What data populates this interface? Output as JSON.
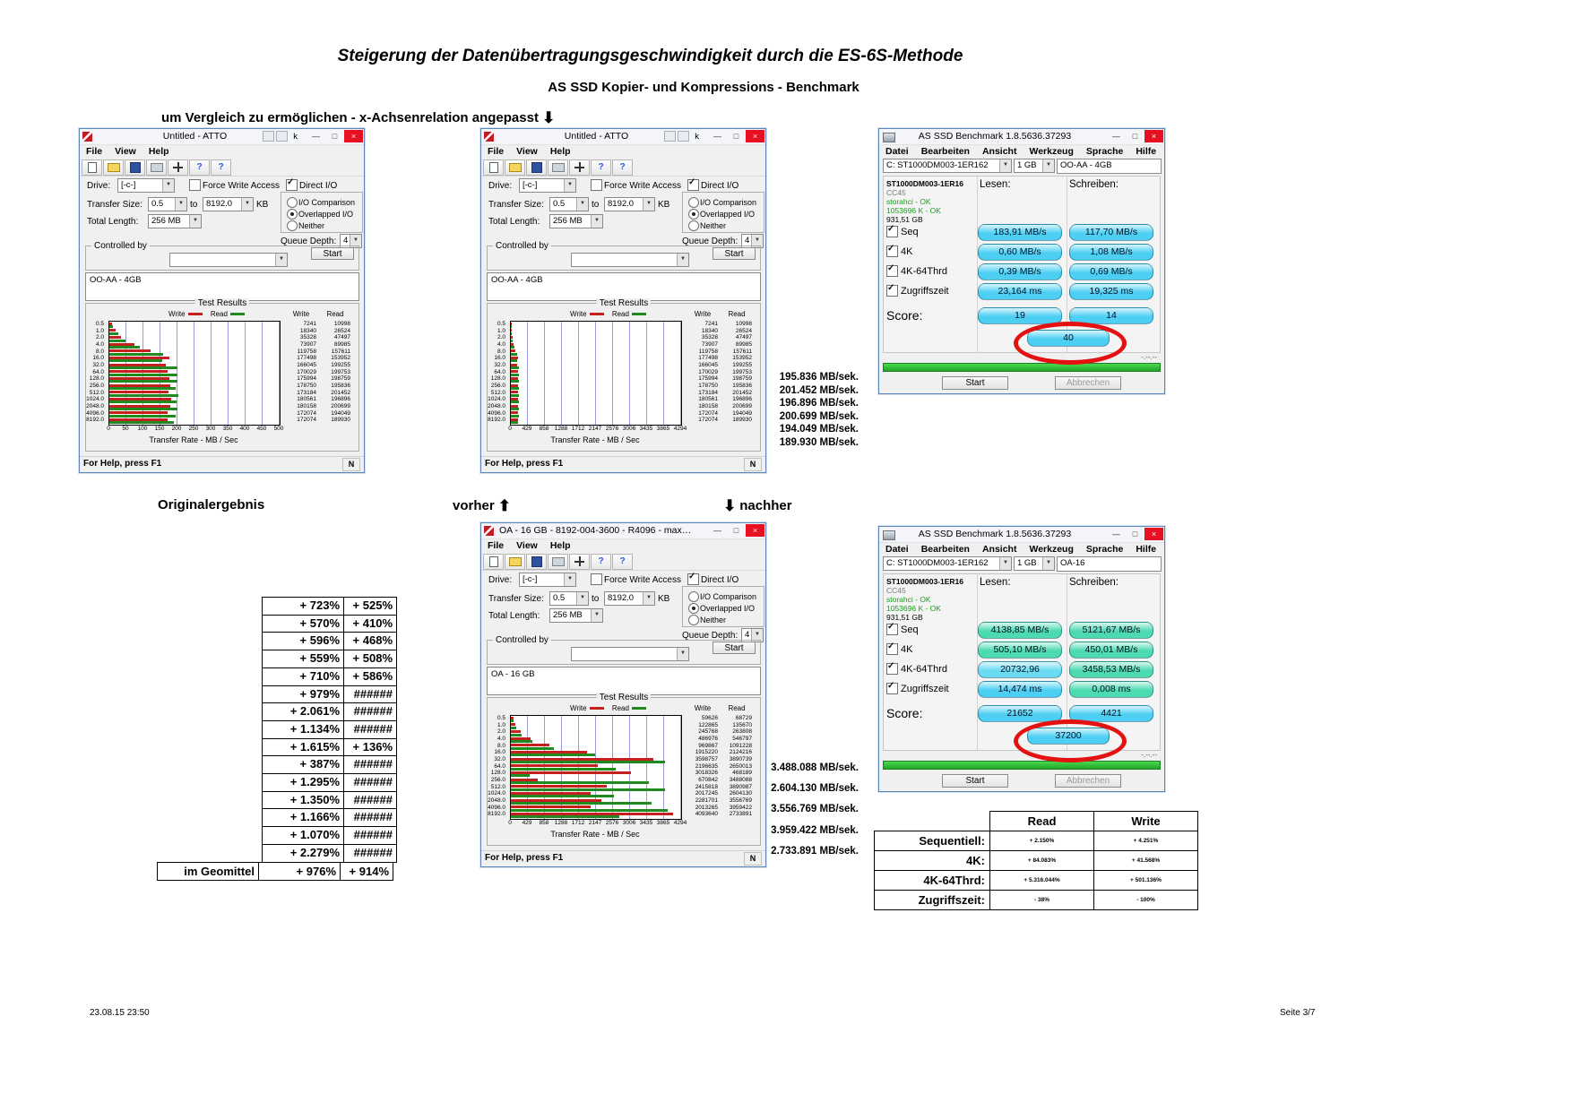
{
  "icons": {
    "dropdown": "▼",
    "check": "✓",
    "close": "×",
    "minimize": "—",
    "maximize": "□",
    "up_arrow": "⬆",
    "down_arrow": "⬇",
    "help": "?"
  },
  "page": {
    "title": "Steigerung der Datenübertragungsgeschwindigkeit durch die ES-6S-Methode",
    "subtitle": "AS SSD Kopier- und Kompressions - Benchmark",
    "note": "um Vergleich zu ermöglichen - x-Achsenrelation angepasst",
    "label_original": "Originalergebnis",
    "label_vorher": "vorher",
    "label_nachher": "nachher",
    "footer_left": "23.08.15 23:50",
    "footer_right": "Seite 3/7"
  },
  "atto_common": {
    "menu": [
      "File",
      "View",
      "Help"
    ],
    "drive_label": "Drive:",
    "drive_value": "[-c-]",
    "force_write": "Force Write Access",
    "direct_io": "Direct I/O",
    "transfer_size_label": "Transfer Size:",
    "transfer_from": "0.5",
    "to": "to",
    "transfer_to": "8192.0",
    "kb": "KB",
    "io_comparison": "I/O Comparison",
    "overlapped_io": "Overlapped I/O",
    "neither": "Neither",
    "total_length_label": "Total Length:",
    "total_length": "256 MB",
    "queue_depth_label": "Queue Depth:",
    "queue_depth": "4",
    "controlled_by": "Controlled by",
    "start": "Start",
    "test_results": "Test Results",
    "write": "Write",
    "read": "Read",
    "xaxis_label": "Transfer Rate - MB / Sec",
    "status": "For Help, press F1",
    "status_right": "N"
  },
  "atto_windows": [
    {
      "title": "Untitled - ATTO",
      "title_extra": "k",
      "desc": "OO-AA - 4GB",
      "xmax": 500,
      "xticks": [
        "0",
        "50",
        "100",
        "150",
        "200",
        "250",
        "300",
        "350",
        "400",
        "450",
        "500"
      ],
      "rows": [
        {
          "size": "0.5",
          "write": 7241,
          "read": 10998
        },
        {
          "size": "1.0",
          "write": 18340,
          "read": 26524
        },
        {
          "size": "2.0",
          "write": 35328,
          "read": 47497
        },
        {
          "size": "4.0",
          "write": 73907,
          "read": 89985
        },
        {
          "size": "8.0",
          "write": 119758,
          "read": 157611
        },
        {
          "size": "16.0",
          "write": 177498,
          "read": 153952
        },
        {
          "size": "32.0",
          "write": 166045,
          "read": 199255
        },
        {
          "size": "64.0",
          "write": 170029,
          "read": 199753
        },
        {
          "size": "128.0",
          "write": 175994,
          "read": 198759
        },
        {
          "size": "256.0",
          "write": 178750,
          "read": 195836
        },
        {
          "size": "512.0",
          "write": 173184,
          "read": 201452
        },
        {
          "size": "1024.0",
          "write": 180561,
          "read": 196896
        },
        {
          "size": "2048.0",
          "write": 180158,
          "read": 200699
        },
        {
          "size": "4096.0",
          "write": 172074,
          "read": 194049
        },
        {
          "size": "8192.0",
          "write": 172074,
          "read": 189930
        }
      ]
    },
    {
      "title": "Untitled - ATTO",
      "title_extra": "k",
      "desc": "OO-AA - 4GB",
      "xmax": 4294,
      "xticks": [
        "0",
        "429",
        "858",
        "1288",
        "1712",
        "2147",
        "2576",
        "3006",
        "3435",
        "3865",
        "4294"
      ],
      "rows": [
        {
          "size": "0.5",
          "write": 7241,
          "read": 10998
        },
        {
          "size": "1.0",
          "write": 18340,
          "read": 26524
        },
        {
          "size": "2.0",
          "write": 35328,
          "read": 47497
        },
        {
          "size": "4.0",
          "write": 73907,
          "read": 89985
        },
        {
          "size": "8.0",
          "write": 119758,
          "read": 157611
        },
        {
          "size": "16.0",
          "write": 177498,
          "read": 153952
        },
        {
          "size": "32.0",
          "write": 166045,
          "read": 199255
        },
        {
          "size": "64.0",
          "write": 170029,
          "read": 199753
        },
        {
          "size": "128.0",
          "write": 175994,
          "read": 198759
        },
        {
          "size": "256.0",
          "write": 178750,
          "read": 195836
        },
        {
          "size": "512.0",
          "write": 173184,
          "read": 201452
        },
        {
          "size": "1024.0",
          "write": 180561,
          "read": 196896
        },
        {
          "size": "2048.0",
          "write": 180158,
          "read": 200699
        },
        {
          "size": "4096.0",
          "write": 172074,
          "read": 194049
        },
        {
          "size": "8192.0",
          "write": 172074,
          "read": 189930
        }
      ]
    },
    {
      "title": "OA - 16 GB - 8192-004-3600 - R4096 - max 4292.b...",
      "title_extra": "",
      "desc": "OA - 16 GB",
      "xmax": 4294,
      "xticks": [
        "0",
        "429",
        "858",
        "1288",
        "1712",
        "2147",
        "2576",
        "3006",
        "3435",
        "3865",
        "4294"
      ],
      "rows": [
        {
          "size": "0.5",
          "write": 59626,
          "read": 68729
        },
        {
          "size": "1.0",
          "write": 122865,
          "read": 135670
        },
        {
          "size": "2.0",
          "write": 245768,
          "read": 263808
        },
        {
          "size": "4.0",
          "write": 486976,
          "read": 546797
        },
        {
          "size": "8.0",
          "write": 969867,
          "read": 1091228
        },
        {
          "size": "16.0",
          "write": 1915220,
          "read": 2124216
        },
        {
          "size": "32.0",
          "write": 3598757,
          "read": 3890739
        },
        {
          "size": "64.0",
          "write": 2196635,
          "read": 2650013
        },
        {
          "size": "128.0",
          "write": 3018326,
          "read": 468189
        },
        {
          "size": "256.0",
          "write": 670842,
          "read": 3488088
        },
        {
          "size": "512.0",
          "write": 2415818,
          "read": 3890987
        },
        {
          "size": "1024.0",
          "write": 2017245,
          "read": 2604130
        },
        {
          "size": "2048.0",
          "write": 2281701,
          "read": 3556769
        },
        {
          "size": "4096.0",
          "write": 2013265,
          "read": 3959422
        },
        {
          "size": "8192.0",
          "write": 4093640,
          "read": 2733891
        }
      ]
    }
  ],
  "asssd_common": {
    "menu": [
      "Datei",
      "Bearbeiten",
      "Ansicht",
      "Werkzeug",
      "Sprache",
      "Hilfe"
    ],
    "lesen": "Lesen:",
    "schreiben": "Schreiben:",
    "row_labels": [
      "Seq",
      "4K",
      "4K-64Thrd",
      "Zugriffszeit"
    ],
    "score_label": "Score:",
    "start": "Start",
    "abbrechen": "Abbrechen",
    "timer": "-.--.--"
  },
  "asssd_windows": [
    {
      "title": "AS SSD Benchmark 1.8.5636.37293",
      "drive_combo": "C: ST1000DM003-1ER162",
      "size_combo": "1 GB",
      "target_name": "OO-AA - 4GB",
      "info": {
        "model": "ST1000DM003-1ER16",
        "firmware": "CC45",
        "driver": "storahci - OK",
        "alignment": "1053696 K - OK",
        "capacity": "931,51 GB"
      },
      "rows": [
        {
          "read": "183,91 MB/s",
          "write": "117,70 MB/s",
          "read_color": "#38c9f2",
          "write_color": "#38c9f2"
        },
        {
          "read": "0,60 MB/s",
          "write": "1,08 MB/s",
          "read_color": "#38c9f2",
          "write_color": "#38c9f2"
        },
        {
          "read": "0,39 MB/s",
          "write": "0,69 MB/s",
          "read_color": "#38c9f2",
          "write_color": "#38c9f2"
        },
        {
          "read": "23,164 ms",
          "write": "19,325 ms",
          "read_color": "#38c9f2",
          "write_color": "#38c9f2"
        }
      ],
      "score_read": "19",
      "score_write": "14",
      "score_total": "40"
    },
    {
      "title": "AS SSD Benchmark 1.8.5636.37293",
      "drive_combo": "C: ST1000DM003-1ER162",
      "size_combo": "1 GB",
      "target_name": "OA-16",
      "info": {
        "model": "ST1000DM003-1ER16",
        "firmware": "CC45",
        "driver": "storahci - OK",
        "alignment": "1053696 K - OK",
        "capacity": "931,51 GB"
      },
      "rows": [
        {
          "read": "4138,85 MB/s",
          "write": "5121,67 MB/s",
          "read_color": "#3ad6a8",
          "write_color": "#3ad6a8"
        },
        {
          "read": "505,10 MB/s",
          "write": "450,01 MB/s",
          "read_color": "#3ad6a8",
          "write_color": "#3ad6a8"
        },
        {
          "read": "20732,96",
          "write": "3458,53 MB/s",
          "read_color": "#59d7f0",
          "write_color": "#3ad6a8"
        },
        {
          "read": "14,474 ms",
          "write": "0,008 ms",
          "read_color": "#38c9f2",
          "write_color": "#3ad6a8"
        }
      ],
      "score_read": "21652",
      "score_write": "4421",
      "score_total": "37200"
    }
  ],
  "annotations_top": [
    "195.836 MB/sek.",
    "201.452 MB/sek.",
    "196.896 MB/sek.",
    "200.699 MB/sek.",
    "194.049 MB/sek.",
    "189.930 MB/sek."
  ],
  "annotations_bottom": [
    "3.488.088 MB/sek.",
    "2.604.130 MB/sek.",
    "3.556.769 MB/sek.",
    "3.959.422 MB/sek.",
    "2.733.891 MB/sek."
  ],
  "percent_table": {
    "rows": [
      [
        "+ 723%",
        "+ 525%"
      ],
      [
        "+ 570%",
        "+ 410%"
      ],
      [
        "+ 596%",
        "+ 468%"
      ],
      [
        "+ 559%",
        "+ 508%"
      ],
      [
        "+ 710%",
        "+ 586%"
      ],
      [
        "+ 979%",
        "######"
      ],
      [
        "+ 2.061%",
        "######"
      ],
      [
        "+ 1.134%",
        "######"
      ],
      [
        "+ 1.615%",
        "+ 136%"
      ],
      [
        "+ 387%",
        "######"
      ],
      [
        "+ 1.295%",
        "######"
      ],
      [
        "+ 1.350%",
        "######"
      ],
      [
        "+ 1.166%",
        "######"
      ],
      [
        "+ 1.070%",
        "######"
      ],
      [
        "+ 2.279%",
        "######"
      ]
    ],
    "footer_label": "im Geomittel",
    "footer": [
      "+ 976%",
      "+ 914%"
    ]
  },
  "compare_table": {
    "headers": [
      "Read",
      "Write"
    ],
    "rows": [
      {
        "label": "Sequentiell:",
        "read": "+ 2.150%",
        "write": "+ 4.251%"
      },
      {
        "label": "4K:",
        "read": "+ 84.083%",
        "write": "+ 41.568%"
      },
      {
        "label": "4K-64Thrd:",
        "read": "+ 5.316.044%",
        "write": "+ 501.136%"
      },
      {
        "label": "Zugriffszeit:",
        "read": "- 38%",
        "write": "- 100%"
      }
    ]
  }
}
